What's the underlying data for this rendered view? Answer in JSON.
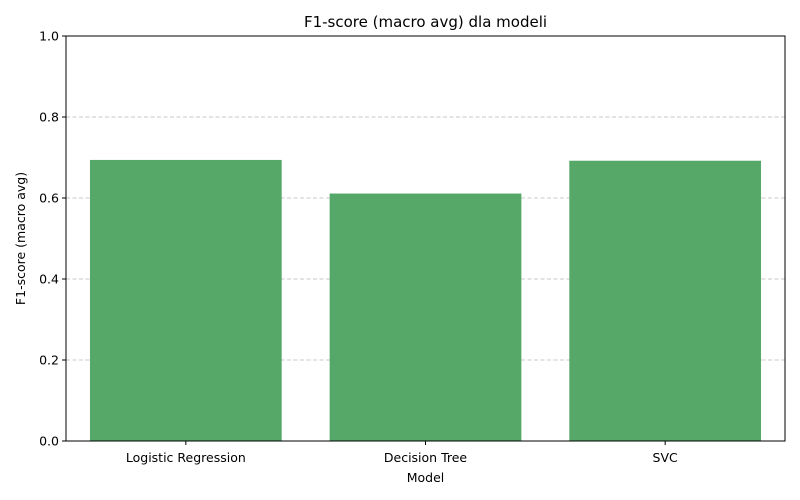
{
  "chart_data": {
    "type": "bar",
    "title": "F1-score (macro avg) dla modeli",
    "xlabel": "Model",
    "ylabel": "F1-score (macro avg)",
    "categories": [
      "Logistic Regression",
      "Decision Tree",
      "SVC"
    ],
    "values": [
      0.694,
      0.611,
      0.692
    ],
    "ylim": [
      0,
      1.0
    ],
    "yticks": [
      "0.0",
      "0.2",
      "0.4",
      "0.6",
      "0.8",
      "1.0"
    ],
    "grid": "y-axis dashed",
    "legend": "none",
    "bar_color": "#55a868",
    "grid_color": "#c8c8c8"
  }
}
